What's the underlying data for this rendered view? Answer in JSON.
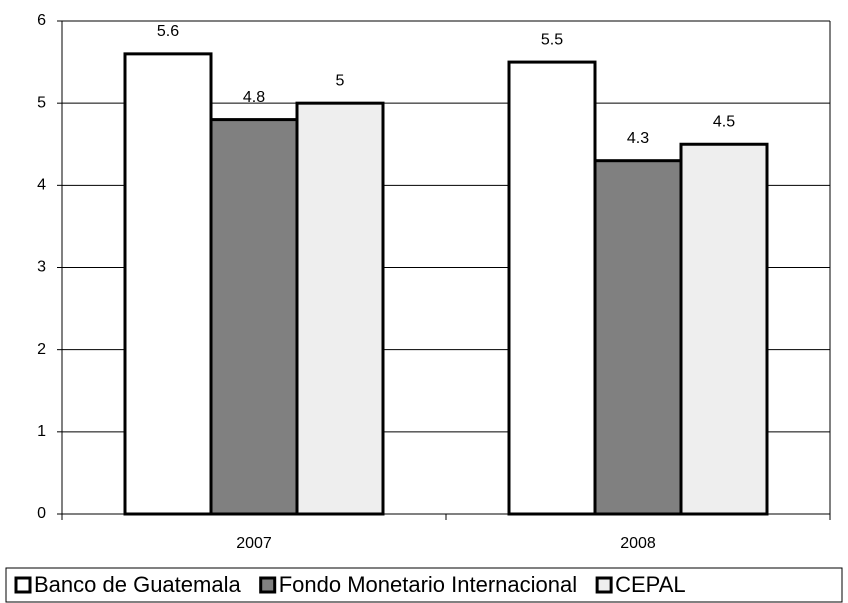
{
  "chart_data": {
    "type": "bar",
    "categories": [
      "2007",
      "2008"
    ],
    "series": [
      {
        "name": "Banco de Guatemala",
        "color": "#ffffff",
        "values": [
          5.6,
          5.5
        ]
      },
      {
        "name": "Fondo Monetario Internacional",
        "color": "#808080",
        "values": [
          4.8,
          4.3
        ]
      },
      {
        "name": "CEPAL",
        "color": "#eeeeee",
        "values": [
          5,
          4.5
        ]
      }
    ],
    "ylim": [
      0,
      6
    ],
    "yticks": [
      0,
      1,
      2,
      3,
      4,
      5,
      6
    ],
    "grid": true,
    "legend": "bottom"
  }
}
